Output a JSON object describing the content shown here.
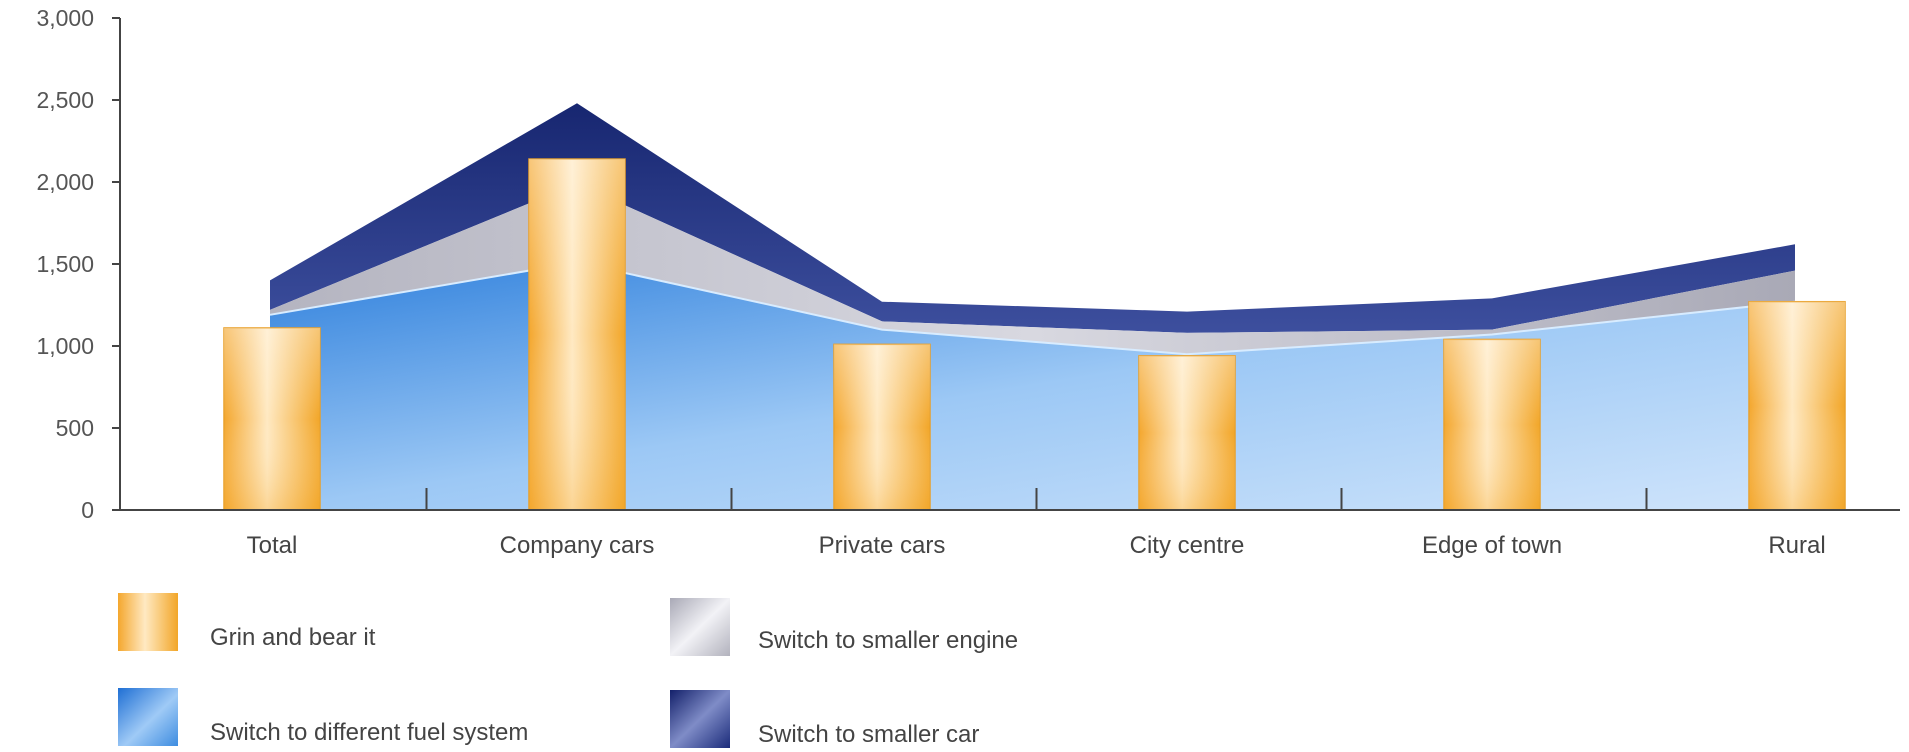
{
  "chart_data": {
    "type": "bar",
    "categories": [
      "Total",
      "Company cars",
      "Private cars",
      "City centre",
      "Edge of town",
      "Rural"
    ],
    "series": [
      {
        "name": "Grin and bear it",
        "type": "bar",
        "values": [
          1110,
          2140,
          1010,
          940,
          1040,
          1270
        ]
      },
      {
        "name": "Switch to different fuel system",
        "type": "area",
        "values": [
          1190,
          1510,
          1100,
          950,
          1070,
          1270
        ]
      },
      {
        "name": "Switch to smaller engine",
        "type": "area",
        "values": [
          1220,
          1990,
          1150,
          1080,
          1100,
          1460
        ]
      },
      {
        "name": "Switch to smaller car",
        "type": "area",
        "values": [
          1400,
          2480,
          1270,
          1210,
          1290,
          1620
        ]
      }
    ],
    "yticks": [
      "0",
      "500",
      "1,000",
      "1,500",
      "2,000",
      "2,500",
      "3,000"
    ],
    "ylim": [
      0,
      3000
    ],
    "grid": false,
    "legend_position": "bottom-left",
    "colors": {
      "bar": "#f5b540",
      "fuel": "#4a95e0",
      "engine": "#b9b9c5",
      "smaller_car": "#1e2f78",
      "axis": "#444444"
    }
  }
}
